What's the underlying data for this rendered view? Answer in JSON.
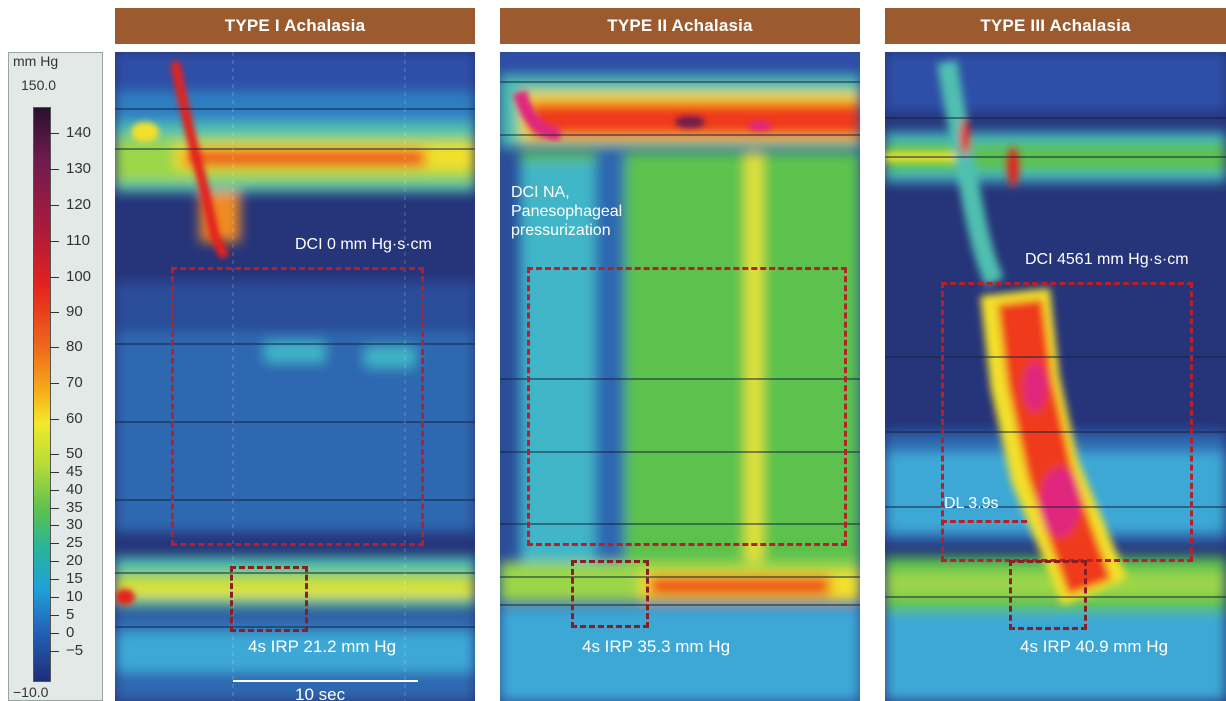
{
  "panels": [
    {
      "title": "TYPE I Achalasia",
      "dci_label": "DCI 0 mm Hg·s·cm",
      "irp_label": "4s IRP 21.2 mm Hg",
      "scale_label": "10 sec"
    },
    {
      "title": "TYPE II Achalasia",
      "dci_label": "DCI NA,",
      "dci_label_2": "Panesophageal",
      "dci_label_3": "pressurization",
      "irp_label": "4s IRP 35.3 mm Hg"
    },
    {
      "title": "TYPE III Achalasia",
      "dci_label": "DCI 4561 mm Hg·s·cm",
      "dl_label": "DL 3.9s",
      "irp_label": "4s IRP 40.9 mm Hg"
    }
  ],
  "legend": {
    "unit": "mm Hg",
    "max": "150.0",
    "min": "−10.0",
    "ticks": [
      "140",
      "130",
      "120",
      "110",
      "100",
      "90",
      "80",
      "70",
      "60",
      "50",
      "45",
      "40",
      "35",
      "30",
      "25",
      "20",
      "15",
      "10",
      "5",
      "0",
      "−5"
    ]
  },
  "colors": {
    "title_bar": "#9b5b2e",
    "dashed_box": "#b5202a",
    "low_pressure": "#26347a",
    "high_pressure": "#e0287d"
  }
}
